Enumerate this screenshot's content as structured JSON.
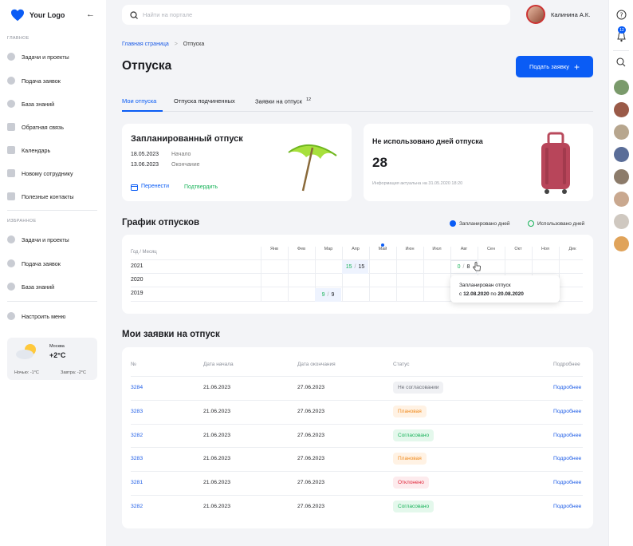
{
  "sidebar": {
    "logo": "Your Logo",
    "section_main": "ГЛАВНОЕ",
    "main_items": [
      "Задачи и проекты",
      "Подача заявок",
      "База знаний",
      "Обратная связь",
      "Календарь",
      "Новому сотруднику",
      "Полезные контакты"
    ],
    "section_fav": "ИЗБРАННОЕ",
    "fav_items": [
      "Задачи и проекты",
      "Подача заявок",
      "База знаний"
    ],
    "settings": "Настроить меню",
    "weather": {
      "city": "Москва",
      "temp": "+2°C",
      "night": "Ночью: -1°C",
      "tomorrow": "Завтра: -2°C"
    }
  },
  "topbar": {
    "search_placeholder": "Найти на портале",
    "user_name": "Калинина А.К.",
    "notifications": "12"
  },
  "breadcrumb": {
    "home": "Главная страница",
    "sep": ">",
    "current": "Отпуска"
  },
  "page_title": "Отпуска",
  "submit_button": "Подать заявку",
  "tabs": [
    {
      "label": "Мои отпуска"
    },
    {
      "label": "Отпуска подчиненных"
    },
    {
      "label": "Заявки на отпуск",
      "count": "12"
    }
  ],
  "planned": {
    "title": "Запланированный отпуск",
    "start_date": "18.05.2023",
    "start_label": "Начало",
    "end_date": "13.06.2023",
    "end_label": "Окончание",
    "reschedule": "Перенести",
    "confirm": "Подтвердить"
  },
  "unused": {
    "title": "Не использовано дней отпуска",
    "days": "28",
    "note": "Информация актуальна на 31.05.2020 18:20"
  },
  "schedule": {
    "title": "График отпусков",
    "legend_planned": "Запланировано дней",
    "legend_used": "Использовано дней",
    "header": "Год / Месяц",
    "months": [
      "Янв",
      "Фев",
      "Мар",
      "Апр",
      "Май",
      "Июн",
      "Июл",
      "Авг",
      "Сен",
      "Окт",
      "Ноя",
      "Дек"
    ],
    "years": [
      "2021",
      "2020",
      "2019"
    ],
    "cells": [
      {
        "used": "15",
        "sep": "/",
        "planned": "15"
      },
      {
        "used": "0",
        "sep": "/",
        "planned": "8"
      },
      {
        "used": "9",
        "sep": "/",
        "planned": "9"
      }
    ],
    "tooltip_title": "Запланирован отпуск",
    "tooltip_from": "с",
    "tooltip_start": "12.08.2020",
    "tooltip_to": "по",
    "tooltip_end": "20.08.2020"
  },
  "requests": {
    "title": "Мои заявки на отпуск",
    "columns": [
      "№",
      "Дата начала",
      "Дата окончания",
      "Статус",
      "Подробнее"
    ],
    "rows": [
      {
        "id": "3284",
        "start": "21.06.2023",
        "end": "27.06.2023",
        "status": "Не согласовании",
        "link": "Подробнее"
      },
      {
        "id": "3283",
        "start": "21.06.2023",
        "end": "27.06.2023",
        "status": "Плановая",
        "link": "Подробнее"
      },
      {
        "id": "3282",
        "start": "21.06.2023",
        "end": "27.06.2023",
        "status": "Согласовано",
        "link": "Подробнее"
      },
      {
        "id": "3283",
        "start": "21.06.2023",
        "end": "27.06.2023",
        "status": "Плановая",
        "link": "Подробнее"
      },
      {
        "id": "3281",
        "start": "21.06.2023",
        "end": "27.06.2023",
        "status": "Отклонено",
        "link": "Подробнее"
      },
      {
        "id": "3282",
        "start": "21.06.2023",
        "end": "27.06.2023",
        "status": "Согласовано",
        "link": "Подробнее"
      }
    ]
  },
  "colors": {
    "accent": "#0a5cf5",
    "green": "#19b35a",
    "orange": "#f08a1c",
    "red": "#e0263a",
    "grey": "#6b6f78"
  }
}
